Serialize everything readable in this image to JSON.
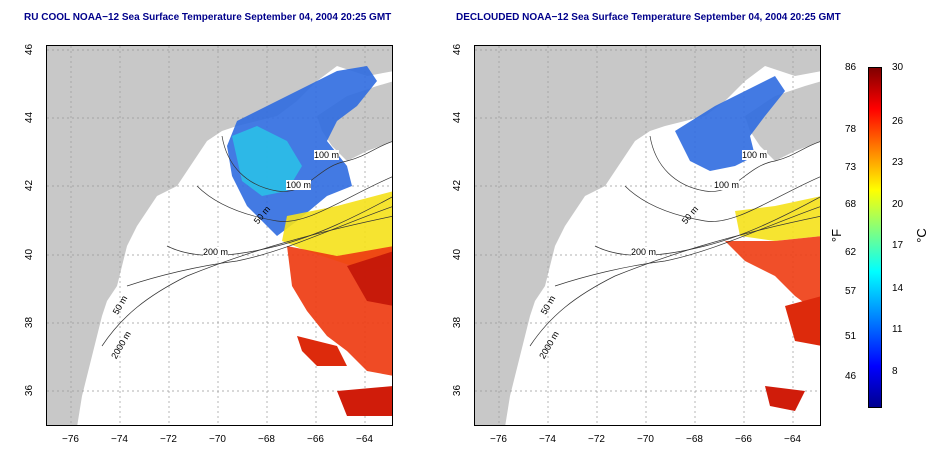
{
  "panels": [
    {
      "title": "RU COOL NOAA−12 Sea Surface Temperature September 04, 2004 20:25 GMT"
    },
    {
      "title": "DECLOUDED NOAA−12 Sea Surface Temperature September 04, 2004 20:25 GMT"
    }
  ],
  "axes": {
    "x_ticks": [
      "−76",
      "−74",
      "−72",
      "−70",
      "−68",
      "−66",
      "−64"
    ],
    "y_ticks": [
      "46",
      "44",
      "42",
      "40",
      "38",
      "36"
    ]
  },
  "contour_labels": [
    "100 m",
    "100 m",
    "50 m",
    "200 m",
    "50 m",
    "2000 m"
  ],
  "colorbar": {
    "f_ticks": [
      "86",
      "78",
      "73",
      "68",
      "62",
      "57",
      "51",
      "46"
    ],
    "c_ticks": [
      "30",
      "26",
      "23",
      "20",
      "17",
      "14",
      "11",
      "8"
    ],
    "f_unit": "°F",
    "c_unit": "°C",
    "range_c": [
      5,
      30
    ]
  },
  "colors": {
    "land": "#c8c8c8",
    "title": "#00008b",
    "grid": "#999999"
  }
}
